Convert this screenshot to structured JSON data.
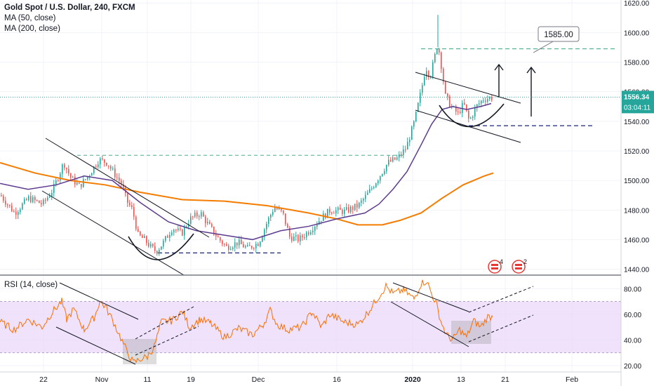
{
  "legend": {
    "title": "Gold Spot / U.S. Dollar, 240, FXCM",
    "ma1": "MA (50, close)",
    "ma2": "MA (200, close)",
    "rsi": "RSI (14, close)"
  },
  "price_label": {
    "value": "1556.34",
    "countdown": "03:04:11"
  },
  "callout": "1585.00",
  "event_badges": [
    "4",
    "2"
  ],
  "colors": {
    "up": "#26a69a",
    "down": "#ef5350",
    "ma50": "#5c3b8f",
    "ma200": "#f57c00",
    "rsi": "#ff6d00",
    "rsi_band": "#e9d8f8",
    "price_line": "#26a69a",
    "dashed_teal": "#4caf8a",
    "dashed_navy": "#1a237e"
  },
  "chart_data": [
    {
      "type": "candlestick",
      "title": "Gold Spot / U.S. Dollar, 240, FXCM",
      "ylim": [
        1436,
        1622
      ],
      "y_ticks": [
        1440,
        1460,
        1480,
        1500,
        1520,
        1540,
        1560,
        1580,
        1600,
        1620
      ],
      "x_ticks": [
        "22",
        "Nov",
        "11",
        "19",
        "Dec",
        "16",
        "2020",
        "13",
        "21",
        "Feb"
      ],
      "last_price": 1556.34,
      "price_path": [
        [
          0,
          1490
        ],
        [
          20,
          1478
        ],
        [
          40,
          1488
        ],
        [
          60,
          1484
        ],
        [
          75,
          1494
        ],
        [
          90,
          1512
        ],
        [
          100,
          1502
        ],
        [
          112,
          1496
        ],
        [
          125,
          1503
        ],
        [
          140,
          1514
        ],
        [
          152,
          1512
        ],
        [
          160,
          1506
        ],
        [
          172,
          1498
        ],
        [
          180,
          1486
        ],
        [
          188,
          1480
        ],
        [
          196,
          1463
        ],
        [
          205,
          1460
        ],
        [
          214,
          1455
        ],
        [
          222,
          1452
        ],
        [
          232,
          1458
        ],
        [
          245,
          1468
        ],
        [
          258,
          1464
        ],
        [
          270,
          1474
        ],
        [
          285,
          1478
        ],
        [
          296,
          1470
        ],
        [
          310,
          1461
        ],
        [
          322,
          1455
        ],
        [
          338,
          1458
        ],
        [
          352,
          1454
        ],
        [
          368,
          1458
        ],
        [
          380,
          1472
        ],
        [
          390,
          1482
        ],
        [
          402,
          1478
        ],
        [
          412,
          1462
        ],
        [
          425,
          1460
        ],
        [
          440,
          1466
        ],
        [
          456,
          1474
        ],
        [
          470,
          1480
        ],
        [
          490,
          1479
        ],
        [
          510,
          1483
        ],
        [
          525,
          1492
        ],
        [
          540,
          1503
        ],
        [
          552,
          1512
        ],
        [
          566,
          1515
        ],
        [
          578,
          1522
        ],
        [
          590,
          1540
        ],
        [
          600,
          1562
        ],
        [
          606,
          1577
        ],
        [
          612,
          1570
        ],
        [
          618,
          1582
        ],
        [
          623,
          1593
        ],
        [
          628,
          1578
        ],
        [
          634,
          1557
        ],
        [
          642,
          1550
        ],
        [
          652,
          1545
        ],
        [
          660,
          1552
        ],
        [
          668,
          1540
        ],
        [
          678,
          1550
        ],
        [
          688,
          1555
        ],
        [
          700,
          1556
        ]
      ],
      "ma50": [
        [
          0,
          1498
        ],
        [
          40,
          1494
        ],
        [
          80,
          1497
        ],
        [
          120,
          1503
        ],
        [
          160,
          1500
        ],
        [
          200,
          1485
        ],
        [
          240,
          1472
        ],
        [
          280,
          1466
        ],
        [
          320,
          1463
        ],
        [
          360,
          1460
        ],
        [
          400,
          1466
        ],
        [
          440,
          1469
        ],
        [
          480,
          1474
        ],
        [
          520,
          1478
        ],
        [
          540,
          1484
        ],
        [
          560,
          1494
        ],
        [
          580,
          1506
        ],
        [
          600,
          1524
        ],
        [
          615,
          1538
        ],
        [
          630,
          1548
        ],
        [
          645,
          1550
        ],
        [
          665,
          1548
        ],
        [
          685,
          1550
        ],
        [
          700,
          1552
        ]
      ],
      "ma200": [
        [
          0,
          1512
        ],
        [
          50,
          1505
        ],
        [
          100,
          1500
        ],
        [
          150,
          1497
        ],
        [
          200,
          1492
        ],
        [
          260,
          1487
        ],
        [
          320,
          1486
        ],
        [
          380,
          1483
        ],
        [
          440,
          1478
        ],
        [
          480,
          1474
        ],
        [
          510,
          1470
        ],
        [
          545,
          1470
        ],
        [
          570,
          1473
        ],
        [
          600,
          1478
        ],
        [
          630,
          1488
        ],
        [
          660,
          1497
        ],
        [
          690,
          1503
        ],
        [
          703,
          1505
        ]
      ],
      "annotations": [
        "1585.00"
      ]
    },
    {
      "type": "line",
      "title": "RSI (14, close)",
      "ylim": [
        15,
        90
      ],
      "y_ticks": [
        20,
        40,
        60,
        80
      ],
      "band": [
        30,
        70
      ],
      "x": [
        0,
        20,
        40,
        60,
        75,
        88,
        95,
        105,
        120,
        135,
        142,
        150,
        160,
        170,
        180,
        190,
        200,
        210,
        220,
        230,
        245,
        260,
        270,
        285,
        300,
        320,
        340,
        360,
        375,
        385,
        395,
        410,
        430,
        445,
        458,
        470,
        490,
        510,
        525,
        540,
        550,
        560,
        575,
        590,
        600,
        608,
        615,
        622,
        628,
        636,
        645,
        655,
        665,
        675,
        685,
        695,
        702
      ],
      "y": [
        54,
        48,
        56,
        50,
        62,
        70,
        56,
        64,
        48,
        58,
        70,
        66,
        56,
        44,
        32,
        22,
        25,
        27,
        35,
        54,
        55,
        62,
        50,
        56,
        53,
        42,
        49,
        44,
        52,
        63,
        52,
        48,
        50,
        62,
        50,
        60,
        54,
        52,
        62,
        74,
        82,
        76,
        79,
        72,
        84,
        86,
        76,
        68,
        55,
        44,
        40,
        48,
        42,
        55,
        50,
        58,
        58
      ]
    }
  ]
}
